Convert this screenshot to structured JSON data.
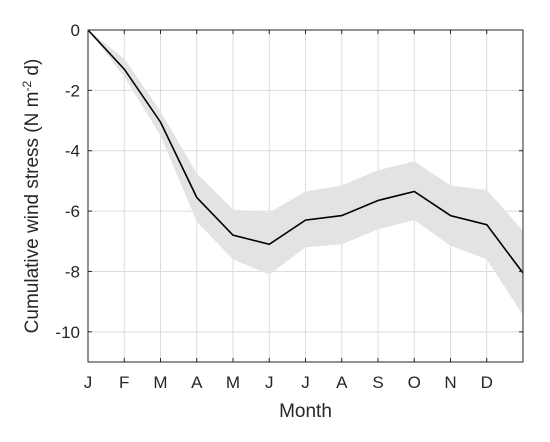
{
  "chart_data": {
    "type": "line",
    "xlabel": "Month",
    "ylabel": "Cumulative wind stress (N m",
    "ylabel_sup": "-2",
    "ylabel_end": " d)",
    "categories": [
      "J",
      "F",
      "M",
      "A",
      "M",
      "J",
      "J",
      "A",
      "S",
      "O",
      "N",
      "D"
    ],
    "xlim": [
      0,
      12
    ],
    "ylim": [
      -11,
      0
    ],
    "yticks": [
      0,
      -2,
      -4,
      -6,
      -8,
      -10
    ],
    "grid": true,
    "series": [
      {
        "x": [
          0,
          1,
          2,
          3,
          4,
          5,
          6,
          7,
          8,
          9,
          10,
          11,
          12
        ],
        "values": [
          0,
          -1.3,
          -3.05,
          -5.55,
          -6.8,
          -7.1,
          -6.3,
          -6.15,
          -5.65,
          -5.35,
          -6.15,
          -6.45,
          -8.05
        ],
        "upper": [
          0,
          -0.95,
          -2.7,
          -4.75,
          -5.95,
          -6.05,
          -5.35,
          -5.15,
          -4.65,
          -4.35,
          -5.15,
          -5.3,
          -6.65
        ],
        "lower": [
          0,
          -1.55,
          -3.5,
          -6.35,
          -7.6,
          -8.1,
          -7.2,
          -7.1,
          -6.6,
          -6.3,
          -7.15,
          -7.6,
          -9.45
        ],
        "color": "#000000",
        "band_color": "#e3e3e3"
      }
    ]
  }
}
